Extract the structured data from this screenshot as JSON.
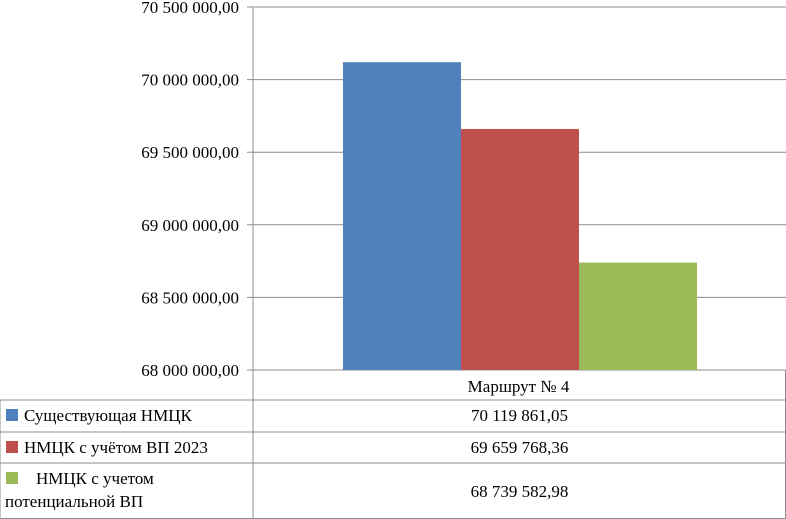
{
  "chart_data": {
    "type": "bar",
    "categories": [
      "Маршрут № 4"
    ],
    "series": [
      {
        "name": "Существующая НМЦК",
        "values": [
          70119861.05
        ],
        "label": "70 119 861,05",
        "color": "#4f81bd"
      },
      {
        "name": "НМЦК с учётом ВП 2023",
        "values": [
          69659768.36
        ],
        "label": "69 659 768,36",
        "color": "#c0504d"
      },
      {
        "name": "НМЦК с учетом потенциальной ВП",
        "values": [
          68739582.98
        ],
        "label": "68 739 582,98",
        "color": "#9bbb59"
      }
    ],
    "ylim": [
      68000000,
      70500000
    ],
    "y_ticks": [
      "68 000 000,00",
      "68 500 000,00",
      "69 000 000,00",
      "69 500 000,00",
      "70 000 000,00",
      "70 500 000,00"
    ],
    "grid": true,
    "legend": "data-table"
  }
}
